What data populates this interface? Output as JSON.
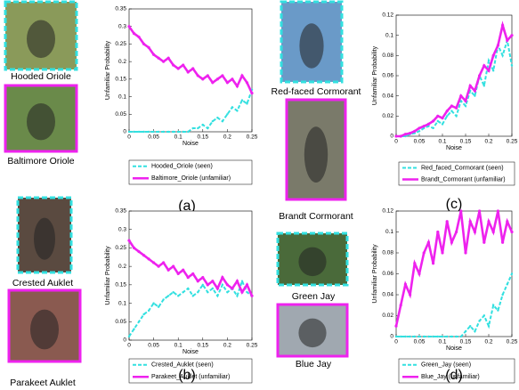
{
  "figures": [
    {
      "caption": "(a)",
      "images": [
        {
          "label": "Hooded Oriole"
        },
        {
          "label": "Baltimore Oriole"
        }
      ]
    },
    {
      "caption": "(b)",
      "images": [
        {
          "label": "Crested Auklet"
        },
        {
          "label": "Parakeet Auklet"
        }
      ]
    },
    {
      "caption": "(c)",
      "images": [
        {
          "label": "Red-faced Cormorant"
        },
        {
          "label": "Brandt Cormorant"
        }
      ]
    },
    {
      "caption": "(d)",
      "images": [
        {
          "label": "Green Jay"
        },
        {
          "label": "Blue Jay"
        }
      ]
    }
  ],
  "chart_data": [
    {
      "type": "line",
      "xlabel": "Noise",
      "ylabel": "Unfamiliar Probability",
      "x": [
        0,
        0.01,
        0.02,
        0.03,
        0.04,
        0.05,
        0.06,
        0.07,
        0.08,
        0.09,
        0.1,
        0.11,
        0.12,
        0.13,
        0.14,
        0.15,
        0.16,
        0.17,
        0.18,
        0.19,
        0.2,
        0.21,
        0.22,
        0.23,
        0.24,
        0.25
      ],
      "xlim": [
        0,
        0.25
      ],
      "xticks": [
        0,
        0.05,
        0.1,
        0.15,
        0.2,
        0.25
      ],
      "ylim": [
        0,
        0.35
      ],
      "yticks": [
        0,
        0.05,
        0.1,
        0.15,
        0.2,
        0.25,
        0.3,
        0.35
      ],
      "series": [
        {
          "name": "Hooded_Oriole (seen)",
          "color": "#33e0e0",
          "line_style": "dashed",
          "values": [
            0,
            0,
            0,
            0,
            0,
            0,
            0,
            0,
            0,
            0,
            0,
            0,
            0,
            0.01,
            0.01,
            0.02,
            0.01,
            0.03,
            0.04,
            0.03,
            0.05,
            0.07,
            0.06,
            0.09,
            0.08,
            0.12
          ]
        },
        {
          "name": "Baltimore_Oriole (unfamiliar)",
          "color": "#ee22ee",
          "line_style": "solid",
          "values": [
            0.3,
            0.28,
            0.27,
            0.25,
            0.24,
            0.22,
            0.21,
            0.2,
            0.21,
            0.19,
            0.18,
            0.19,
            0.17,
            0.18,
            0.16,
            0.15,
            0.16,
            0.14,
            0.15,
            0.16,
            0.14,
            0.15,
            0.13,
            0.16,
            0.14,
            0.11
          ]
        }
      ]
    },
    {
      "type": "line",
      "xlabel": "Noise",
      "ylabel": "Unfamiliar Probability",
      "x": [
        0,
        0.01,
        0.02,
        0.03,
        0.04,
        0.05,
        0.06,
        0.07,
        0.08,
        0.09,
        0.1,
        0.11,
        0.12,
        0.13,
        0.14,
        0.15,
        0.16,
        0.17,
        0.18,
        0.19,
        0.2,
        0.21,
        0.22,
        0.23,
        0.24,
        0.25
      ],
      "xlim": [
        0,
        0.25
      ],
      "xticks": [
        0,
        0.05,
        0.1,
        0.15,
        0.2,
        0.25
      ],
      "ylim": [
        0,
        0.35
      ],
      "yticks": [
        0,
        0.05,
        0.1,
        0.15,
        0.2,
        0.25,
        0.3,
        0.35
      ],
      "series": [
        {
          "name": "Crested_Auklet (seen)",
          "color": "#33e0e0",
          "line_style": "dashed",
          "values": [
            0.01,
            0.03,
            0.05,
            0.07,
            0.08,
            0.1,
            0.09,
            0.11,
            0.12,
            0.13,
            0.12,
            0.13,
            0.14,
            0.12,
            0.13,
            0.15,
            0.13,
            0.14,
            0.12,
            0.15,
            0.13,
            0.14,
            0.12,
            0.16,
            0.13,
            0.12
          ]
        },
        {
          "name": "Parakeet_Auklet (unfamiliar)",
          "color": "#ee22ee",
          "line_style": "solid",
          "values": [
            0.27,
            0.25,
            0.24,
            0.23,
            0.22,
            0.21,
            0.2,
            0.21,
            0.19,
            0.2,
            0.18,
            0.19,
            0.17,
            0.18,
            0.16,
            0.17,
            0.15,
            0.16,
            0.14,
            0.17,
            0.15,
            0.14,
            0.16,
            0.13,
            0.15,
            0.12
          ]
        }
      ]
    },
    {
      "type": "line",
      "xlabel": "Noise",
      "ylabel": "Unfamiliar Probability",
      "x": [
        0,
        0.01,
        0.02,
        0.03,
        0.04,
        0.05,
        0.06,
        0.07,
        0.08,
        0.09,
        0.1,
        0.11,
        0.12,
        0.13,
        0.14,
        0.15,
        0.16,
        0.17,
        0.18,
        0.19,
        0.2,
        0.21,
        0.22,
        0.23,
        0.24,
        0.25
      ],
      "xlim": [
        0,
        0.25
      ],
      "xticks": [
        0,
        0.05,
        0.1,
        0.15,
        0.2,
        0.25
      ],
      "ylim": [
        0,
        0.12
      ],
      "yticks": [
        0,
        0.02,
        0.04,
        0.06,
        0.08,
        0.1,
        0.12
      ],
      "series": [
        {
          "name": "Red_faced_Cormorant (seen)",
          "color": "#33e0e0",
          "line_style": "dashed",
          "values": [
            0,
            0,
            0,
            0.002,
            0.003,
            0.005,
            0.008,
            0.01,
            0.008,
            0.015,
            0.012,
            0.02,
            0.025,
            0.02,
            0.035,
            0.03,
            0.045,
            0.04,
            0.06,
            0.05,
            0.075,
            0.065,
            0.09,
            0.08,
            0.095,
            0.07
          ]
        },
        {
          "name": "Brandt_Cormorant (unfamiliar)",
          "color": "#ee22ee",
          "line_style": "solid",
          "values": [
            0,
            0,
            0.002,
            0.003,
            0.005,
            0.008,
            0.01,
            0.012,
            0.015,
            0.02,
            0.018,
            0.025,
            0.03,
            0.028,
            0.04,
            0.035,
            0.05,
            0.045,
            0.06,
            0.07,
            0.065,
            0.08,
            0.09,
            0.11,
            0.095,
            0.1
          ]
        }
      ]
    },
    {
      "type": "line",
      "xlabel": "Noise",
      "ylabel": "Unfamiliar Probability",
      "x": [
        0,
        0.01,
        0.02,
        0.03,
        0.04,
        0.05,
        0.06,
        0.07,
        0.08,
        0.09,
        0.1,
        0.11,
        0.12,
        0.13,
        0.14,
        0.15,
        0.16,
        0.17,
        0.18,
        0.19,
        0.2,
        0.21,
        0.22,
        0.23,
        0.24,
        0.25
      ],
      "xlim": [
        0,
        0.25
      ],
      "xticks": [
        0,
        0.05,
        0.1,
        0.15,
        0.2,
        0.25
      ],
      "ylim": [
        0,
        0.12
      ],
      "yticks": [
        0,
        0.02,
        0.04,
        0.06,
        0.08,
        0.1,
        0.12
      ],
      "series": [
        {
          "name": "Green_Jay (seen)",
          "color": "#33e0e0",
          "line_style": "dashed",
          "values": [
            0,
            0,
            0,
            0,
            0,
            0,
            0,
            0,
            0,
            0,
            0,
            0,
            0,
            0,
            0,
            0.005,
            0.01,
            0.005,
            0.015,
            0.02,
            0.01,
            0.03,
            0.025,
            0.04,
            0.05,
            0.06
          ]
        },
        {
          "name": "Blue_Jay (unfamiliar)",
          "color": "#ee22ee",
          "line_style": "solid",
          "values": [
            0.01,
            0.03,
            0.05,
            0.04,
            0.07,
            0.06,
            0.08,
            0.09,
            0.07,
            0.1,
            0.08,
            0.11,
            0.09,
            0.1,
            0.12,
            0.08,
            0.11,
            0.1,
            0.12,
            0.09,
            0.11,
            0.1,
            0.12,
            0.09,
            0.11,
            0.1
          ]
        }
      ]
    }
  ]
}
